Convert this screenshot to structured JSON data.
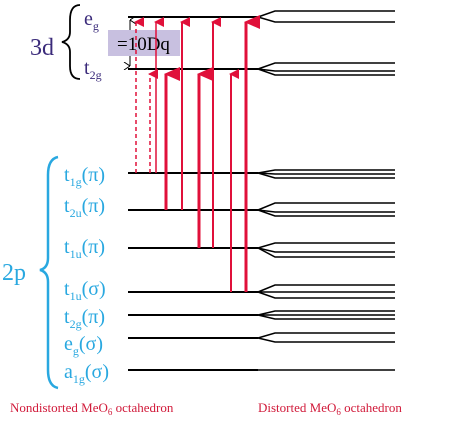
{
  "colors": {
    "purple": "#3a2a7a",
    "cyan": "#29a8e0",
    "red": "#e0103a",
    "black": "#000000",
    "dq_box": "#c8c0e0",
    "caption": "#d11a3a"
  },
  "group_labels": {
    "d3": "3d",
    "p2": "2p"
  },
  "dq_label": "=10Dq",
  "levels_3d": [
    {
      "base": "e",
      "sub": "g",
      "suffix": ""
    },
    {
      "base": "t",
      "sub": "2g",
      "suffix": ""
    }
  ],
  "levels_2p": [
    {
      "base": "t",
      "sub": "1g",
      "suffix": "(π)"
    },
    {
      "base": "t",
      "sub": "2u",
      "suffix": "(π)"
    },
    {
      "base": "t",
      "sub": "1u",
      "suffix": "(π)"
    },
    {
      "base": "t",
      "sub": "1u",
      "suffix": "(σ)"
    },
    {
      "base": "t",
      "sub": "2g",
      "suffix": "(π)"
    },
    {
      "base": "e",
      "sub": "g",
      "suffix": "(σ)"
    },
    {
      "base": "a",
      "sub": "1g",
      "suffix": "(σ)"
    }
  ],
  "captions": {
    "left": {
      "pre": "Nondistorted MeO",
      "sub": "6",
      "post": " octahedron"
    },
    "right": {
      "pre": "Distorted MeO",
      "sub": "6",
      "post": " octahedron"
    }
  }
}
